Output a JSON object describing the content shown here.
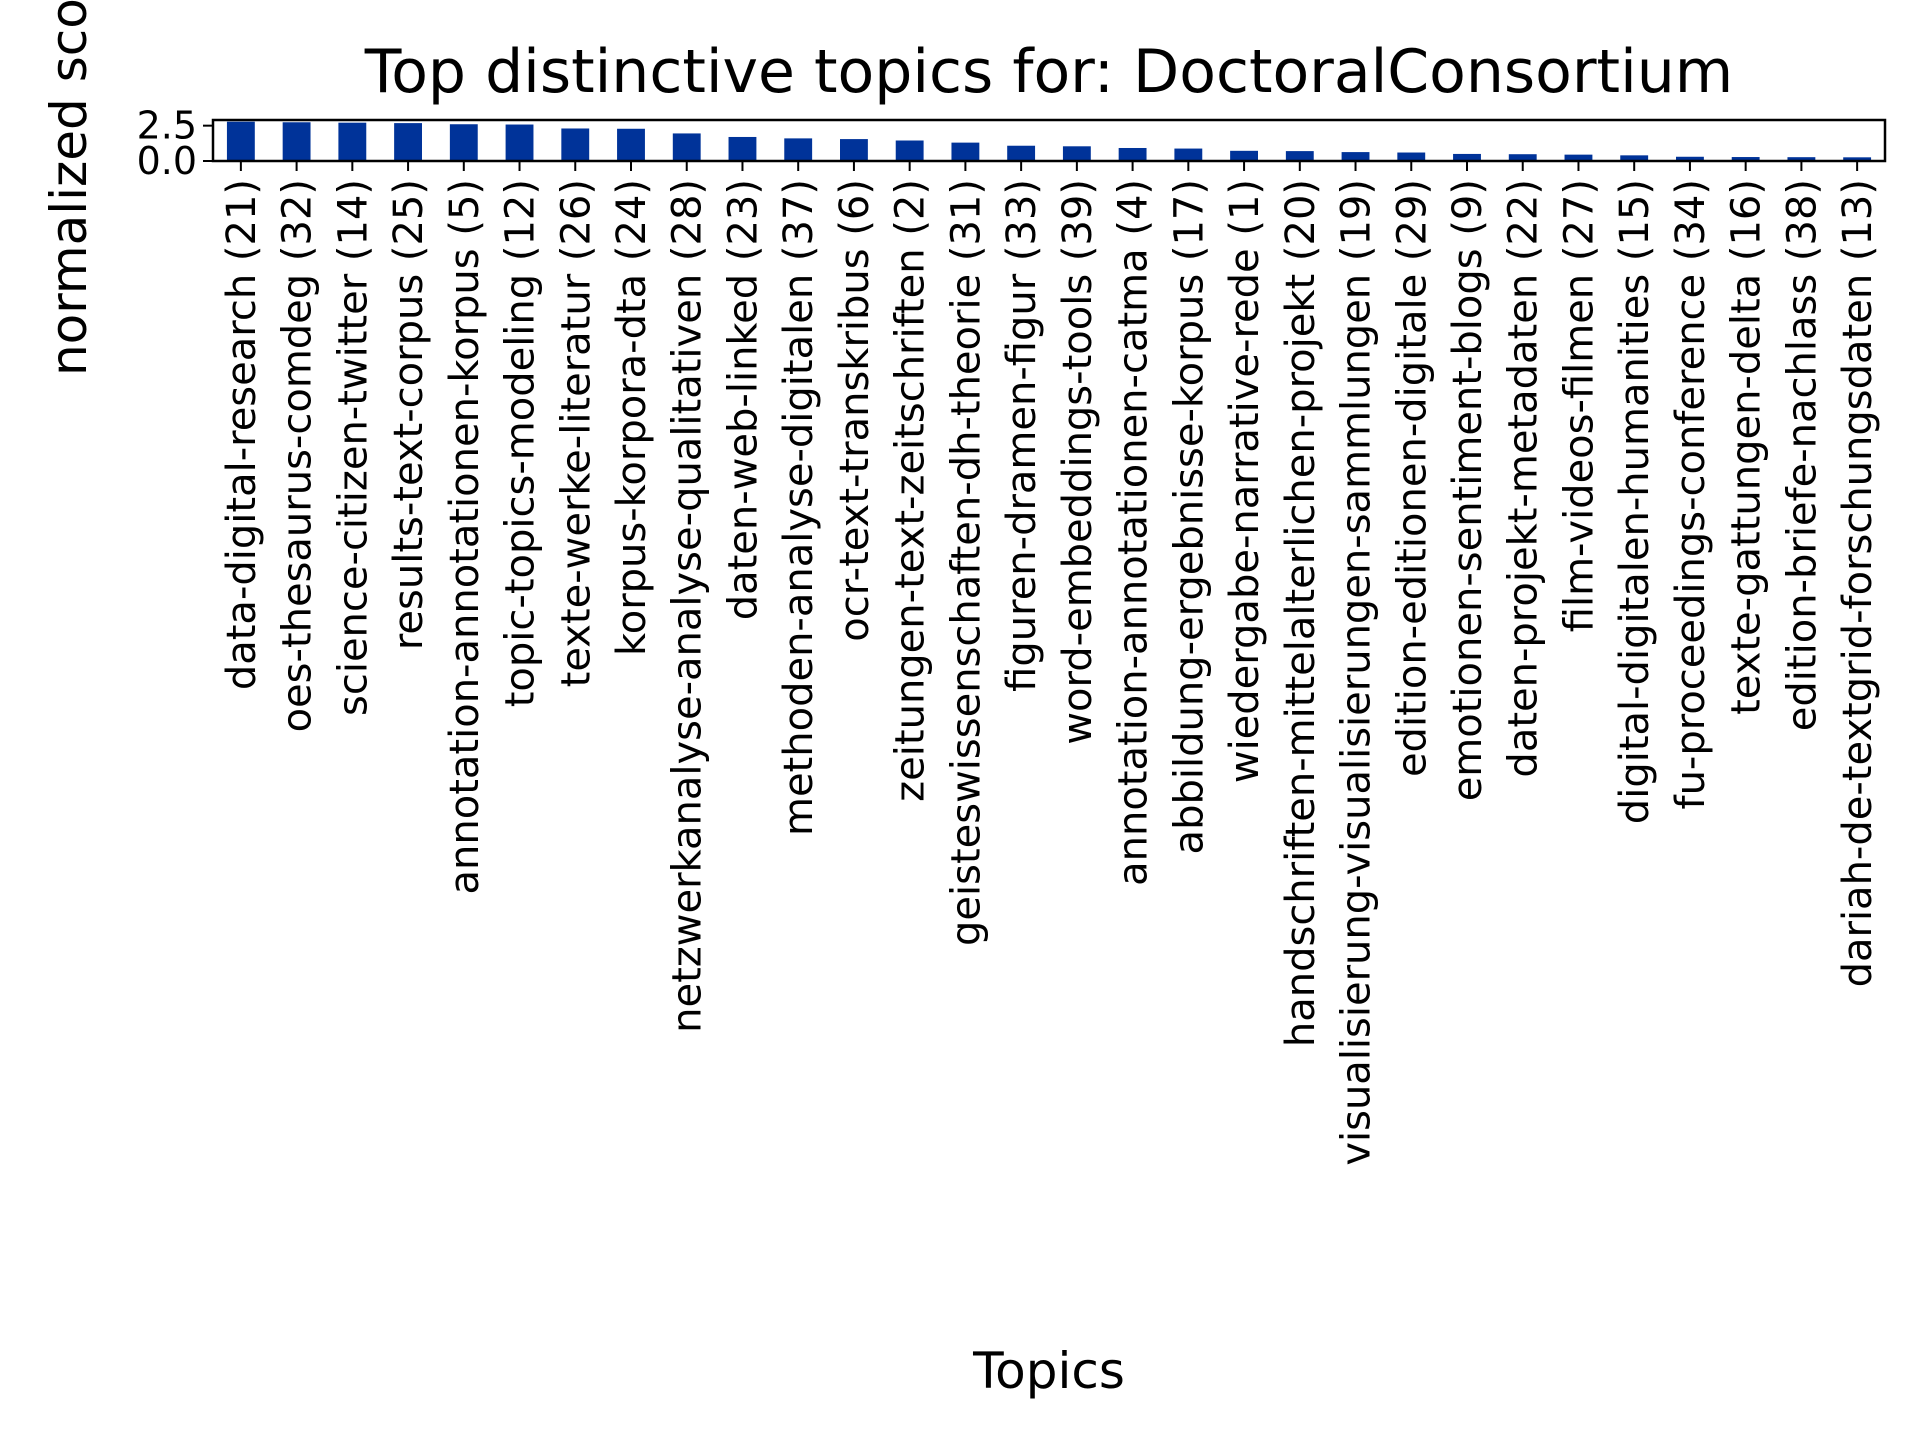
{
  "chart_data": {
    "type": "bar",
    "title": "Top distinctive topics for: DoctoralConsortium",
    "xlabel": "Topics",
    "ylabel": "normalized score",
    "ylim": [
      0,
      2.9
    ],
    "yticks": [
      "0.0",
      "2.5"
    ],
    "ytick_values": [
      0,
      2.5
    ],
    "bar_color": "#003399",
    "grid": false,
    "legend": "none",
    "categories": [
      "data-digital-research (21)",
      "oes-thesaurus-comdeg (32)",
      "science-citizen-twitter (14)",
      "results-text-corpus (25)",
      "annotation-annotationen-korpus (5)",
      "topic-topics-modeling (12)",
      "texte-werke-literatur (26)",
      "korpus-korpora-dta (24)",
      "netzwerkanalyse-analyse-qualitativen (28)",
      "daten-web-linked (23)",
      "methoden-analyse-digitalen (37)",
      "ocr-text-transkribus (6)",
      "zeitungen-text-zeitschriften (2)",
      "geisteswissenschaften-dh-theorie (31)",
      "figuren-dramen-figur (33)",
      "word-embeddings-tools (39)",
      "annotation-annotationen-catma (4)",
      "abbildung-ergebnisse-korpus (17)",
      "wiedergabe-narrative-rede (1)",
      "handschriften-mittelalterlichen-projekt (20)",
      "visualisierung-visualisierungen-sammlungen (19)",
      "edition-editionen-digitale (29)",
      "emotionen-sentiment-blogs (9)",
      "daten-projekt-metadaten (22)",
      "film-videos-filmen (27)",
      "digital-digitalen-humanities (15)",
      "fu-proceedings-conference (34)",
      "texte-gattungen-delta (16)",
      "edition-briefe-nachlass (38)",
      "dariah-de-textgrid-forschungsdaten (13)"
    ],
    "values": [
      2.78,
      2.74,
      2.71,
      2.68,
      2.6,
      2.58,
      2.3,
      2.28,
      1.95,
      1.7,
      1.6,
      1.55,
      1.45,
      1.3,
      1.08,
      1.04,
      0.92,
      0.88,
      0.72,
      0.7,
      0.63,
      0.6,
      0.5,
      0.48,
      0.45,
      0.4,
      0.3,
      0.28,
      0.27,
      0.26
    ]
  }
}
